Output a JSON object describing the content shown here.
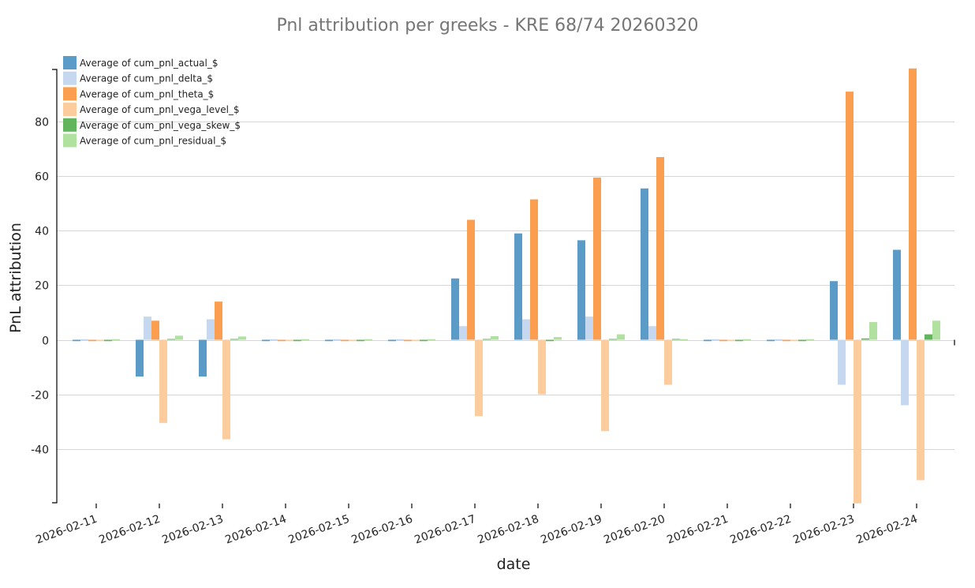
{
  "chart_data": {
    "type": "bar",
    "title": "Pnl attribution per greeks - KRE 68/74 20260320",
    "xlabel": "date",
    "ylabel": "PnL attribution",
    "ylim": [
      -60,
      100
    ],
    "yticks": [
      -40,
      -20,
      0,
      20,
      40,
      60,
      80
    ],
    "ytick_labels": [
      "-40",
      "-20",
      "0",
      "20",
      "40",
      "60",
      "80"
    ],
    "grid": true,
    "legend_position": "top-left",
    "categories": [
      "2026-02-11",
      "2026-02-12",
      "2026-02-13",
      "2026-02-14",
      "2026-02-15",
      "2026-02-16",
      "2026-02-17",
      "2026-02-18",
      "2026-02-19",
      "2026-02-20",
      "2026-02-21",
      "2026-02-22",
      "2026-02-23",
      "2026-02-24"
    ],
    "series": [
      {
        "name": "Average of cum_pnl_actual_$",
        "color": "#5b9bc8",
        "values": [
          -0.5,
          -13.5,
          -13.5,
          -0.5,
          -0.5,
          -0.5,
          22.5,
          39,
          36.5,
          55.5,
          -0.5,
          -0.5,
          21.5,
          33
        ]
      },
      {
        "name": "Average of cum_pnl_delta_$",
        "color": "#c5d8ef",
        "values": [
          0,
          8.5,
          7.5,
          0,
          0,
          0,
          5,
          7.5,
          8.5,
          5,
          0,
          0,
          -16.5,
          -24
        ]
      },
      {
        "name": "Average of cum_pnl_theta_$",
        "color": "#fc9e4f",
        "values": [
          -0.5,
          7,
          14,
          -0.5,
          -0.5,
          -0.5,
          44,
          51.5,
          59.5,
          67,
          -0.5,
          -0.5,
          91,
          99.5
        ]
      },
      {
        "name": "Average of cum_pnl_vega_level_$",
        "color": "#fdcc9d",
        "values": [
          -0.5,
          -30.5,
          -36.5,
          -0.5,
          -0.5,
          -0.5,
          -28,
          -20,
          -33.5,
          -16.5,
          -0.5,
          -0.5,
          -60,
          -51.5
        ]
      },
      {
        "name": "Average of cum_pnl_vega_skew_$",
        "color": "#63b55d",
        "values": [
          -0.5,
          0.3,
          0.3,
          -0.5,
          -0.5,
          -0.5,
          0.3,
          -0.5,
          0.3,
          0.3,
          -0.5,
          -0.5,
          0.5,
          2
        ]
      },
      {
        "name": "Average of cum_pnl_residual_$",
        "color": "#b1e19f",
        "values": [
          0,
          1.5,
          1.2,
          0,
          0,
          0,
          1.3,
          1,
          2,
          0,
          0,
          0,
          6.5,
          7
        ]
      }
    ]
  }
}
